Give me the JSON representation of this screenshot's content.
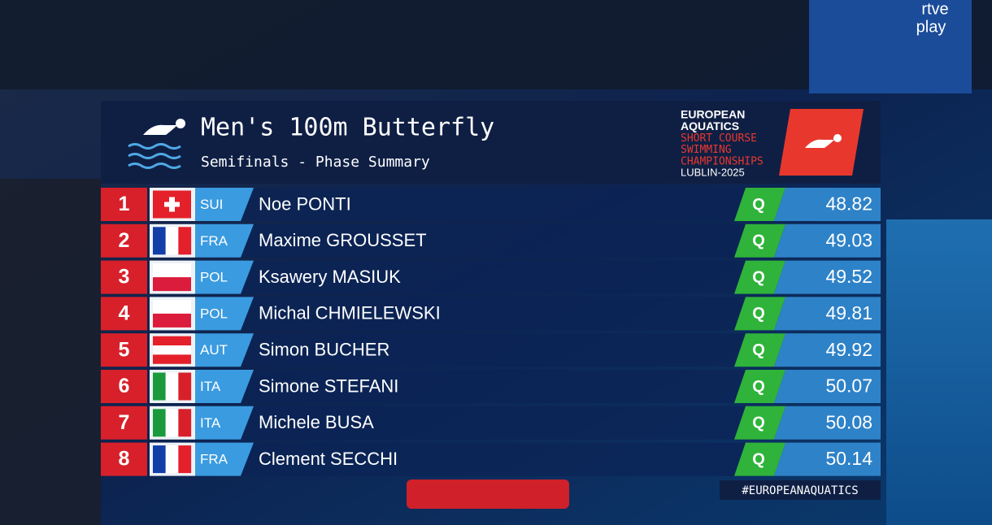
{
  "watermark": {
    "top": "rtve",
    "bottom": "play"
  },
  "header": {
    "title": "Men's 100m Butterfly",
    "subtitle": "Semifinals - Phase Summary",
    "logo": {
      "lines": [
        "EUROPEAN",
        "AQUATICS",
        "SHORT COURSE",
        "SWIMMING",
        "CHAMPIONSHIPS",
        "LUBLIN-2025"
      ]
    }
  },
  "table": {
    "rows": [
      {
        "rank": "1",
        "country": "SUI",
        "name": "Noe PONTI",
        "status": "Q",
        "time": "48.82"
      },
      {
        "rank": "2",
        "country": "FRA",
        "name": "Maxime GROUSSET",
        "status": "Q",
        "time": "49.03"
      },
      {
        "rank": "3",
        "country": "POL",
        "name": "Ksawery MASIUK",
        "status": "Q",
        "time": "49.52"
      },
      {
        "rank": "4",
        "country": "POL",
        "name": "Michal CHMIELEWSKI",
        "status": "Q",
        "time": "49.81"
      },
      {
        "rank": "5",
        "country": "AUT",
        "name": "Simon BUCHER",
        "status": "Q",
        "time": "49.92"
      },
      {
        "rank": "6",
        "country": "ITA",
        "name": "Simone STEFANI",
        "status": "Q",
        "time": "50.07"
      },
      {
        "rank": "7",
        "country": "ITA",
        "name": "Michele BUSA",
        "status": "Q",
        "time": "50.08"
      },
      {
        "rank": "8",
        "country": "FRA",
        "name": "Clement SECCHI",
        "status": "Q",
        "time": "50.14"
      }
    ]
  },
  "hashtag": "#EUROPEANAQUATICS"
}
